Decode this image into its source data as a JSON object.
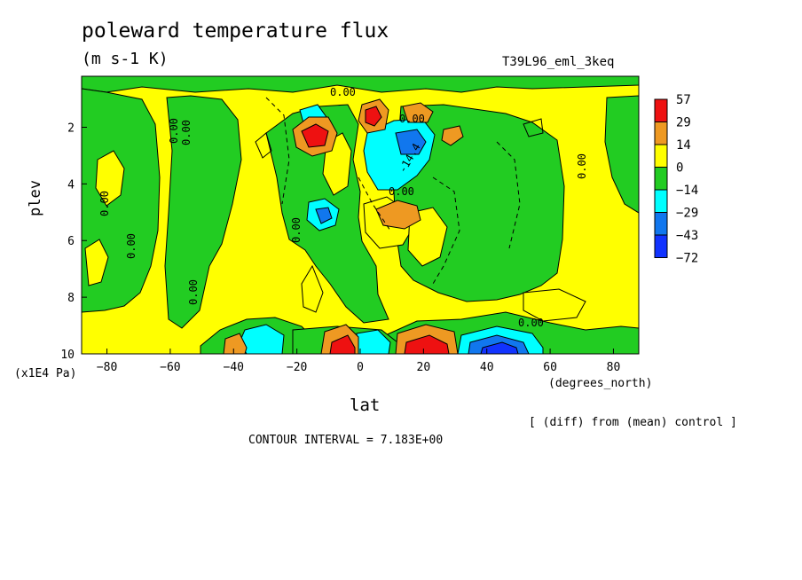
{
  "chart_data": {
    "type": "heatmap",
    "title": "poleward temperature flux",
    "units": "(m s-1 K)",
    "run_label": "T39L96_eml_3keq",
    "xlabel": "lat",
    "x_unit": "(degrees_north)",
    "ylabel": "plev",
    "y_unit": "(x1E4 Pa)",
    "xlim": [
      -88,
      88
    ],
    "ylim": [
      10,
      0.2
    ],
    "x_ticks": [
      "-80",
      "-60",
      "-40",
      "-20",
      "0",
      "20",
      "40",
      "60",
      "80"
    ],
    "y_ticks": [
      "2",
      "4",
      "6",
      "8",
      "10"
    ],
    "note": "[ (diff) from (mean) control ]",
    "contour_interval": "CONTOUR INTERVAL = 7.183E+00",
    "contour_labels": [
      "0.00",
      "0.00",
      "0.00",
      "0.00",
      "0.00",
      "0.00",
      "0.00",
      "0.00",
      "0.00",
      "0.00",
      "0.00",
      "-14.4"
    ],
    "colorbar": {
      "labels": [
        "57",
        "29",
        "14",
        "0",
        "-14",
        "-29",
        "-43",
        "-72"
      ],
      "colors": [
        "#ee1111",
        "#ee9922",
        "#ffff00",
        "#22cc22",
        "#00ffff",
        "#1177ee",
        "#1133ff"
      ]
    },
    "field_colors": {
      "positive_strong": "#ee1111",
      "positive_mid": "#ee9922",
      "positive_weak": "#ffff00",
      "negative_weak": "#22cc22",
      "negative_mid": "#00ffff",
      "negative_strong": "#1177ee",
      "negative_extreme": "#1133ff"
    }
  }
}
